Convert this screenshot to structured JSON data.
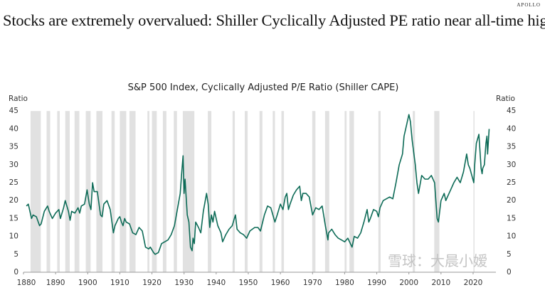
{
  "logo": "APOLLO",
  "headline": "Stocks are extremely overvalued: Shiller Cyclically Adjusted PE ratio near all-time highs",
  "watermark": "雪球：大晨小嫒",
  "chart_data": {
    "type": "line",
    "title": "S&P 500 Index, Cyclically Adjusted P/E Ratio (Shiller CAPE)",
    "ylabel_left": "Ratio",
    "ylabel_right": "Ratio",
    "xlim": [
      1880,
      2025
    ],
    "ylim": [
      0,
      45
    ],
    "xticks": [
      1880,
      1890,
      1900,
      1910,
      1920,
      1930,
      1940,
      1950,
      1960,
      1970,
      1980,
      1990,
      2000,
      2010,
      2020
    ],
    "yticks": [
      0,
      5,
      10,
      15,
      20,
      25,
      30,
      35,
      40,
      45
    ],
    "grid": false,
    "colors": {
      "line": "#0d6b57",
      "recession": "#e1e1e1"
    },
    "recession_periods": [
      [
        1882.2,
        1885.4
      ],
      [
        1887.2,
        1888.3
      ],
      [
        1890.5,
        1891.3
      ],
      [
        1893.0,
        1894.4
      ],
      [
        1895.9,
        1897.4
      ],
      [
        1899.4,
        1900.9
      ],
      [
        1902.7,
        1904.6
      ],
      [
        1907.4,
        1908.4
      ],
      [
        1910.0,
        1912.0
      ],
      [
        1913.0,
        1914.9
      ],
      [
        1918.6,
        1919.2
      ],
      [
        1920.0,
        1921.5
      ],
      [
        1923.4,
        1924.5
      ],
      [
        1926.8,
        1927.8
      ],
      [
        1929.6,
        1933.2
      ],
      [
        1937.4,
        1938.5
      ],
      [
        1945.1,
        1945.8
      ],
      [
        1948.9,
        1949.8
      ],
      [
        1953.5,
        1954.4
      ],
      [
        1957.6,
        1958.3
      ],
      [
        1960.3,
        1961.1
      ],
      [
        1969.9,
        1970.9
      ],
      [
        1973.9,
        1975.2
      ],
      [
        1980.0,
        1980.6
      ],
      [
        1981.5,
        1982.9
      ],
      [
        1990.5,
        1991.2
      ],
      [
        2001.2,
        2001.9
      ],
      [
        2007.9,
        2009.5
      ],
      [
        2020.1,
        2020.4
      ]
    ],
    "series": [
      {
        "x": [
          1880.9,
          1881.5,
          1882.5,
          1883,
          1884,
          1885,
          1885.5,
          1886.5,
          1887.5,
          1888,
          1889,
          1890,
          1891,
          1891.5,
          1892.5,
          1893,
          1894,
          1894.5,
          1895,
          1896,
          1897,
          1897.5,
          1898,
          1899,
          1899.8,
          1900.5,
          1901,
          1901.5,
          1902,
          1903,
          1904,
          1904.5,
          1905,
          1906,
          1907,
          1908,
          1908.5,
          1909.5,
          1910,
          1910.5,
          1911,
          1911.5,
          1912,
          1913,
          1914,
          1915,
          1916,
          1917,
          1918,
          1919,
          1919.5,
          1920.5,
          1921,
          1922,
          1923,
          1924,
          1925,
          1926,
          1927,
          1928,
          1928.8,
          1929.2,
          1929.7,
          1930,
          1930.3,
          1931,
          1931.5,
          1932,
          1932.5,
          1932.8,
          1933.2,
          1933.6,
          1934.5,
          1935.2,
          1936,
          1937,
          1937.5,
          1938,
          1938.5,
          1939,
          1939.5,
          1940.5,
          1941.5,
          1942,
          1943,
          1944,
          1945,
          1946,
          1946.5,
          1947.5,
          1948.5,
          1949.5,
          1950.5,
          1952,
          1953,
          1953.8,
          1955,
          1956,
          1957,
          1958.3,
          1959,
          1960,
          1960.8,
          1961.5,
          1962,
          1962.5,
          1963,
          1964,
          1965,
          1966,
          1966.5,
          1967,
          1968,
          1969,
          1970,
          1971,
          1972,
          1973,
          1974,
          1974.8,
          1975,
          1976,
          1977,
          1978,
          1979,
          1980,
          1981,
          1982.3,
          1983,
          1984,
          1985,
          1986,
          1987,
          1987.5,
          1988,
          1989,
          1990,
          1990.5,
          1991,
          1992,
          1993,
          1994,
          1995,
          1996,
          1997,
          1998,
          1998.5,
          1999,
          2000,
          2000.5,
          2001,
          2002,
          2002.5,
          2003,
          2004,
          2005,
          2006,
          2007,
          2008,
          2008.8,
          2009.2,
          2010,
          2011,
          2011.5,
          2012,
          2013,
          2014,
          2015,
          2016,
          2017,
          2018,
          2018.5,
          2019,
          2020.2,
          2020.5,
          2021,
          2021.8,
          2022.5,
          2022.8,
          2023,
          2023.5,
          2024,
          2024.3,
          2024.5,
          2025
        ],
        "y": [
          18.5,
          19,
          15,
          16,
          15.5,
          13,
          13.5,
          17,
          18.5,
          17,
          15,
          16.5,
          17.5,
          15,
          18,
          20,
          17,
          14.5,
          17,
          16.5,
          18,
          16.5,
          18.5,
          19,
          23,
          19,
          17.5,
          25,
          22.5,
          22.5,
          16,
          15.5,
          19,
          20,
          17.5,
          11,
          13,
          15,
          15.5,
          14,
          13,
          15,
          14,
          13.5,
          11,
          10.5,
          12.5,
          11.5,
          7,
          6.5,
          7,
          5.5,
          5,
          5.5,
          8,
          8.5,
          9,
          10.5,
          13,
          18,
          22,
          27,
          32.5,
          22,
          26,
          16,
          14,
          7,
          6,
          9.5,
          8,
          14,
          12.5,
          11,
          17,
          22,
          19,
          12.5,
          16,
          14,
          17,
          13,
          11,
          8.5,
          10.5,
          12,
          13,
          16,
          12,
          11,
          10.5,
          9.5,
          11.5,
          12.5,
          12.5,
          11.5,
          16,
          18.5,
          18,
          14,
          16,
          19,
          17.5,
          21,
          22,
          17.5,
          19,
          21.5,
          23,
          24,
          20,
          22,
          22,
          21,
          16,
          18,
          17.5,
          18.5,
          13,
          9,
          11,
          12,
          10.5,
          9.5,
          9,
          8.5,
          9.5,
          7,
          10,
          9.5,
          11,
          14,
          17.5,
          14,
          15,
          17.5,
          17,
          15.5,
          18,
          20,
          20.5,
          21,
          20.5,
          25,
          30,
          33,
          38,
          40,
          44,
          42,
          37,
          30,
          25,
          22,
          27,
          26,
          26,
          27,
          25,
          15,
          14,
          20,
          22,
          20,
          21,
          23,
          25,
          26.5,
          25,
          28,
          33,
          30,
          29,
          25,
          30,
          36,
          38.5,
          29,
          27.5,
          29,
          30,
          36,
          38,
          33,
          40
        ]
      }
    ]
  }
}
